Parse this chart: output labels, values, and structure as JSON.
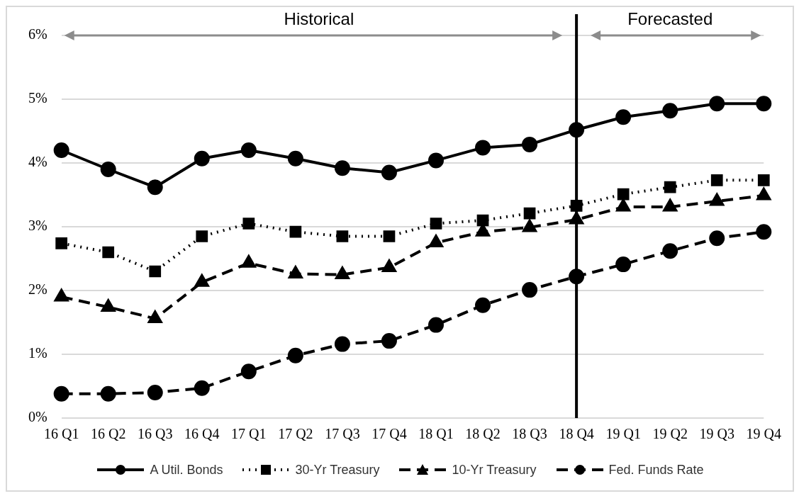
{
  "chart_data": {
    "type": "line",
    "categories": [
      "16 Q1",
      "16 Q2",
      "16 Q3",
      "16 Q4",
      "17 Q1",
      "17 Q2",
      "17 Q3",
      "17 Q4",
      "18 Q1",
      "18 Q2",
      "18 Q3",
      "18 Q4",
      "19 Q1",
      "19 Q2",
      "19 Q3",
      "19 Q4"
    ],
    "series": [
      {
        "name": "A Util. Bonds",
        "color": "#000000",
        "marker": "circle",
        "line_style": "solid",
        "values": [
          4.2,
          3.9,
          3.62,
          4.07,
          4.2,
          4.07,
          3.92,
          3.85,
          4.04,
          4.24,
          4.29,
          4.52,
          4.72,
          4.82,
          4.93,
          4.93
        ]
      },
      {
        "name": "30-Yr Treasury",
        "color": "#000000",
        "marker": "square",
        "line_style": "dotted",
        "values": [
          2.74,
          2.6,
          2.3,
          2.85,
          3.05,
          2.92,
          2.85,
          2.85,
          3.05,
          3.1,
          3.21,
          3.33,
          3.51,
          3.62,
          3.73,
          3.73
        ]
      },
      {
        "name": "10-Yr Treasury",
        "color": "#000000",
        "marker": "triangle",
        "line_style": "dashed",
        "values": [
          1.9,
          1.74,
          1.56,
          2.13,
          2.43,
          2.26,
          2.25,
          2.36,
          2.75,
          2.92,
          2.99,
          3.11,
          3.31,
          3.31,
          3.4,
          3.49
        ]
      },
      {
        "name": "Fed. Funds Rate",
        "color": "#000000",
        "marker": "circle",
        "line_style": "dashed",
        "values": [
          0.38,
          0.38,
          0.4,
          0.47,
          0.73,
          0.98,
          1.16,
          1.21,
          1.46,
          1.77,
          2.01,
          2.22,
          2.41,
          2.62,
          2.82,
          2.92
        ]
      }
    ],
    "ylim": [
      0,
      6
    ],
    "yticks": [
      {
        "value": 0,
        "label": "0%"
      },
      {
        "value": 1,
        "label": "1%"
      },
      {
        "value": 2,
        "label": "2%"
      },
      {
        "value": 3,
        "label": "3%"
      },
      {
        "value": 4,
        "label": "4%"
      },
      {
        "value": 5,
        "label": "5%"
      },
      {
        "value": 6,
        "label": "6%"
      }
    ],
    "grid": "y",
    "legend": "bottom",
    "ref_lines": [
      {
        "axis": "x",
        "value": "18 Q4",
        "color": "#000000",
        "line_style": "solid"
      }
    ],
    "annotations": [
      "Historical",
      "Forecasted"
    ]
  }
}
